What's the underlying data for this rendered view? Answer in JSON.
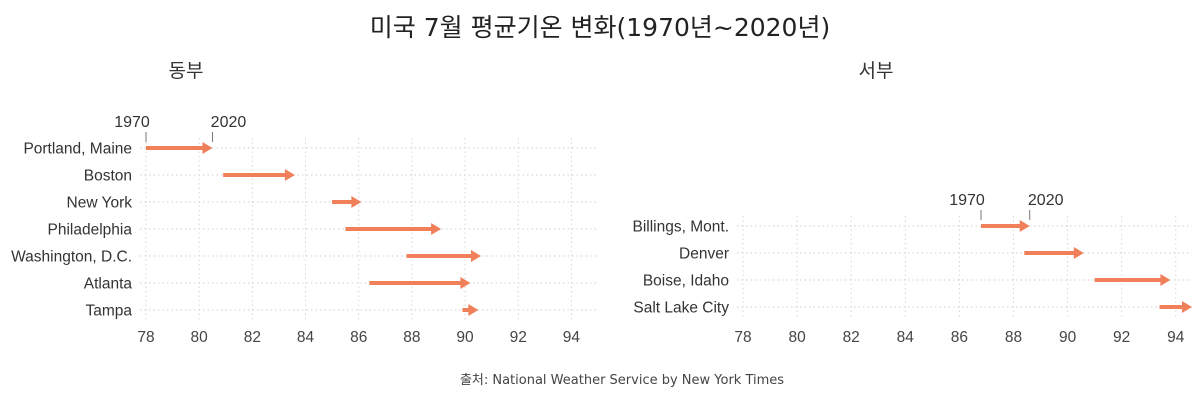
{
  "title": "미국 7월 평균기온 변화(1970년~2020년)",
  "source": "출처: National Weather Service by New York Times",
  "colors": {
    "arrow": "#f0805a",
    "grid": "#d6d6d6",
    "text": "#333333"
  },
  "chart_data": [
    {
      "type": "arrow",
      "panel_title": "동부",
      "start_label": "1970",
      "end_label": "2020",
      "xlim": [
        78,
        95
      ],
      "xticks": [
        78,
        80,
        82,
        84,
        86,
        88,
        90,
        92,
        94
      ],
      "series": [
        {
          "label": "Portland, Maine",
          "start": 78.0,
          "end": 80.5
        },
        {
          "label": "Boston",
          "start": 80.9,
          "end": 83.6
        },
        {
          "label": "New York",
          "start": 85.0,
          "end": 86.1
        },
        {
          "label": "Philadelphia",
          "start": 85.5,
          "end": 89.1
        },
        {
          "label": "Washington, D.C.",
          "start": 87.8,
          "end": 90.6
        },
        {
          "label": "Atlanta",
          "start": 86.4,
          "end": 90.2
        },
        {
          "label": "Tampa",
          "start": 89.9,
          "end": 90.5
        }
      ]
    },
    {
      "type": "arrow",
      "panel_title": "서부",
      "start_label": "1970",
      "end_label": "2020",
      "xlim": [
        78,
        94.6
      ],
      "xticks": [
        78,
        80,
        82,
        84,
        86,
        88,
        90,
        92,
        94
      ],
      "series": [
        {
          "label": "Billings, Mont.",
          "start": 86.8,
          "end": 88.6
        },
        {
          "label": "Denver",
          "start": 88.4,
          "end": 90.6
        },
        {
          "label": "Boise, Idaho",
          "start": 91.0,
          "end": 93.8
        },
        {
          "label": "Salt Lake City",
          "start": 93.4,
          "end": 94.6
        }
      ]
    }
  ]
}
